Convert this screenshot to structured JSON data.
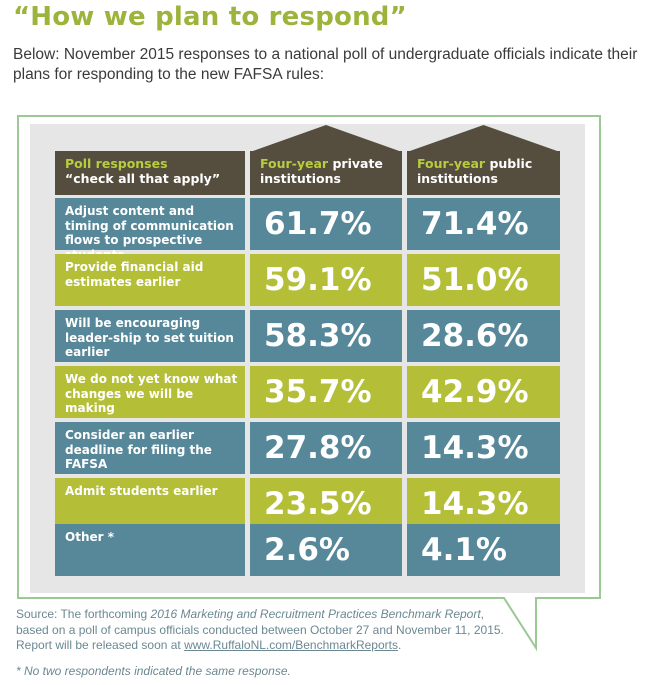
{
  "title": "“How we plan to respond”",
  "intro": "Below: November 2015 responses to a national poll of undergraduate officials indicate their plans for responding to the new FAFSA rules:",
  "colors": {
    "title_green": "#9cb43b",
    "header_brown": "#554e3f",
    "accent_green": "#b7cd3c",
    "row_teal": "#56889a",
    "row_olive": "#b4bf37",
    "frame_green": "#9cc896",
    "panel_gray": "#e6e6e6"
  },
  "table": {
    "header": {
      "responses_line1": "Poll responses",
      "responses_line2": "“check all that apply”",
      "private_accent": "Four-year",
      "private_rest": " private",
      "private_line2": "institutions",
      "public_accent": "Four-year",
      "public_rest": " public",
      "public_line2": "institutions"
    },
    "rows": [
      {
        "label": "Adjust content and timing of communication flows to prospective students",
        "private": "61.7%",
        "public": "71.4%",
        "color": "teal"
      },
      {
        "label": "Provide financial aid estimates earlier",
        "private": "59.1%",
        "public": "51.0%",
        "color": "olive"
      },
      {
        "label": "Will be encouraging leader-ship to set tuition earlier",
        "private": "58.3%",
        "public": "28.6%",
        "color": "teal"
      },
      {
        "label": "We do not yet know what changes we will be making",
        "private": "35.7%",
        "public": "42.9%",
        "color": "olive"
      },
      {
        "label": "Consider an earlier deadline for filing the FAFSA",
        "private": "27.8%",
        "public": "14.3%",
        "color": "teal"
      },
      {
        "label": "Admit students earlier",
        "private": "23.5%",
        "public": "14.3%",
        "color": "olive"
      },
      {
        "label": "Other *",
        "private": "2.6%",
        "public": "4.1%",
        "color": "teal"
      }
    ]
  },
  "source": {
    "prefix": "Source: The forthcoming ",
    "report": "2016 Marketing and Recruitment Practices Benchmark Report",
    "middle": ", based on a poll of campus officials conducted between October 27 and November 11, 2015. Report will be released soon at ",
    "link": "www.RuffaloNL.com/BenchmarkReports",
    "suffix": "."
  },
  "footnote": "* No two respondents indicated the same response."
}
